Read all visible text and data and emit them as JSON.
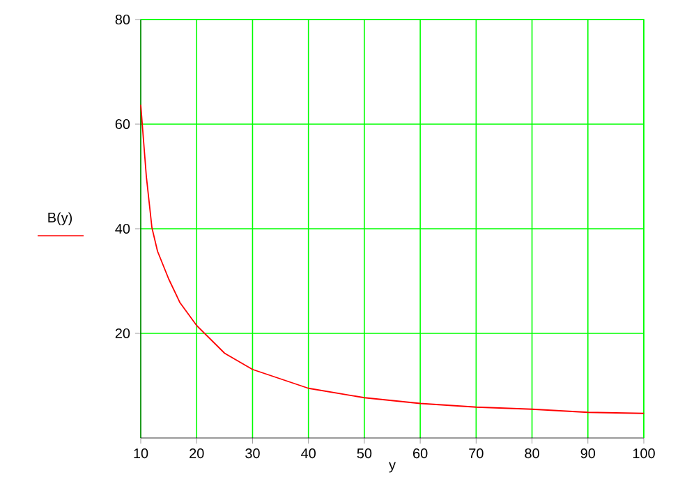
{
  "chart_data": {
    "type": "line",
    "xlabel": "y",
    "ylabel": "B(y)",
    "x": [
      10,
      11,
      12,
      13,
      15,
      17,
      20,
      25,
      30,
      35,
      40,
      45,
      50,
      60,
      70,
      80,
      90,
      100
    ],
    "series": [
      {
        "color": "#ff0000",
        "values": [
          63.7,
          50,
          40.2,
          35.7,
          30.4,
          25.9,
          21.5,
          16.2,
          13.1,
          11.3,
          9.5,
          8.6,
          7.7,
          6.6,
          5.9,
          5.5,
          4.9,
          4.7
        ]
      }
    ],
    "xlim": [
      10,
      100
    ],
    "ylim": [
      0,
      80
    ],
    "xticks": [
      10,
      20,
      30,
      40,
      50,
      60,
      70,
      80,
      90,
      100
    ],
    "yticks": [
      20,
      40,
      60,
      80
    ],
    "grid": true,
    "marker": "none",
    "line_style": "solid"
  }
}
